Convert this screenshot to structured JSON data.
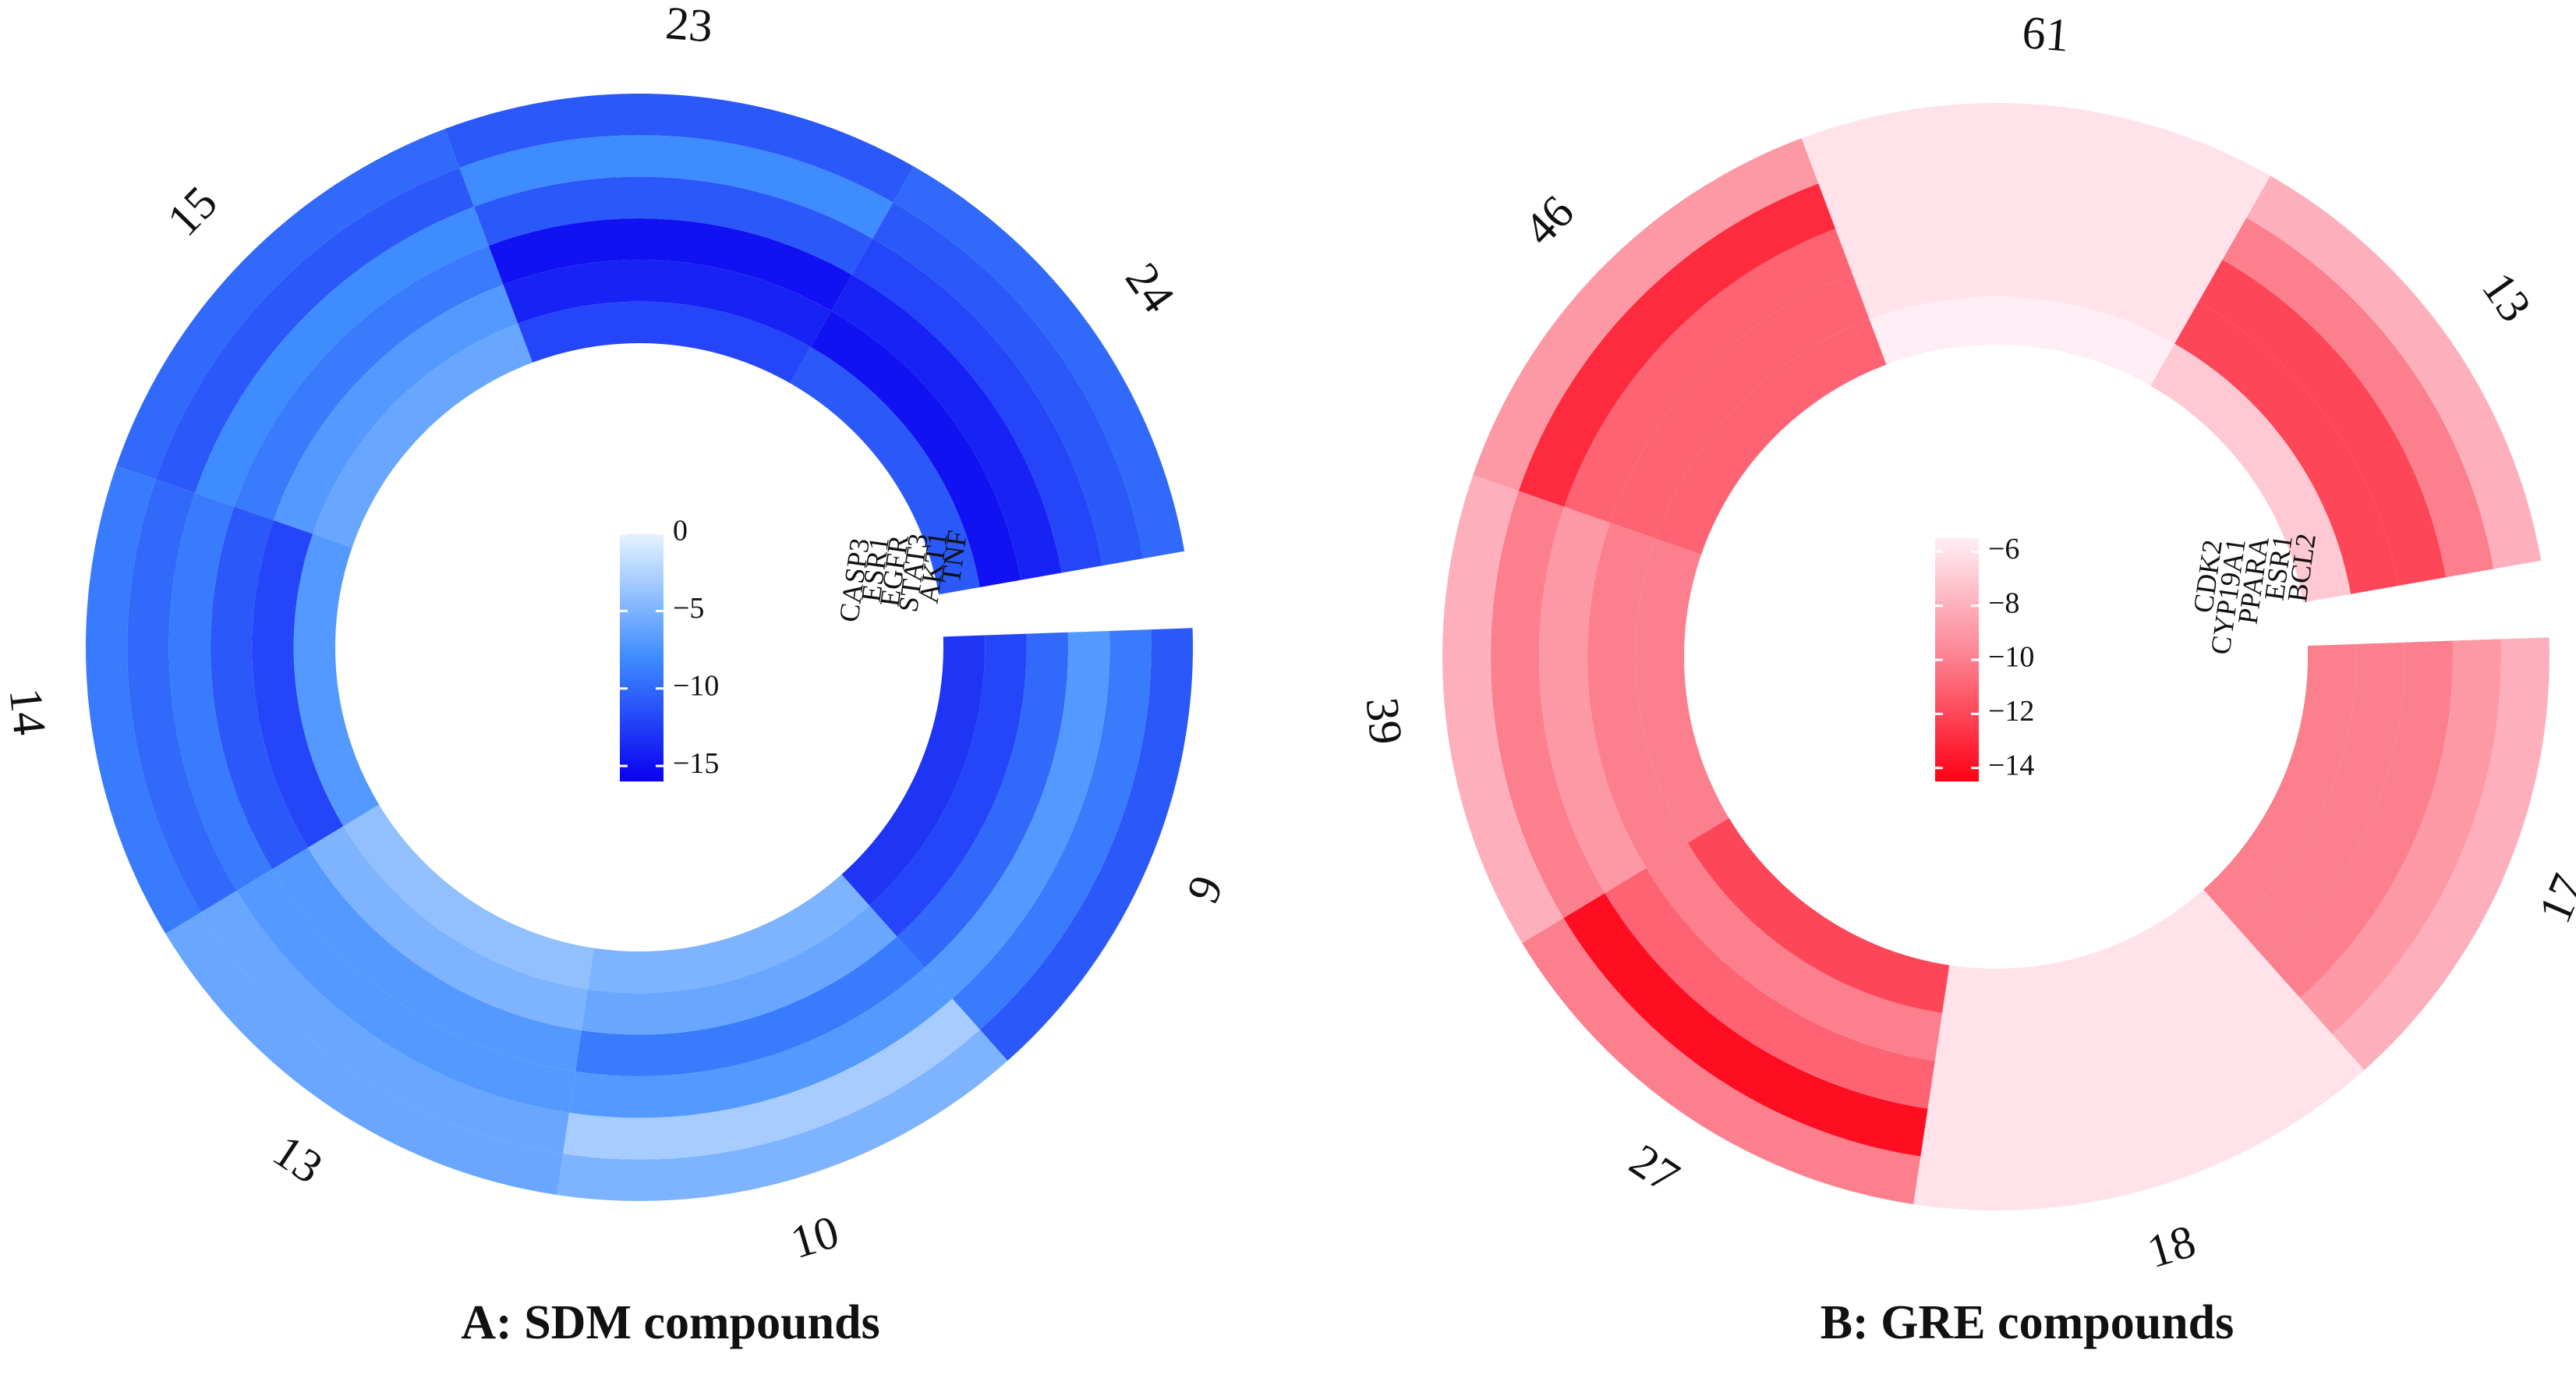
{
  "figure": {
    "panels": [
      {
        "caption": "A: SDM compounds"
      },
      {
        "caption": "B: GRE compounds"
      }
    ]
  },
  "chart_data": [
    {
      "type": "heatmap",
      "layout": "circular",
      "title": "A: SDM compounds",
      "tracks": [
        "TNF",
        "AKT1",
        "STAT3",
        "EGFR",
        "ESR1",
        "CASP3"
      ],
      "sectors": [
        "24",
        "23",
        "15",
        "14",
        "13",
        "10",
        "9"
      ],
      "values": [
        [
          -10,
          -11,
          -12,
          -14,
          -15,
          -11
        ],
        [
          -11,
          -8,
          -11,
          -15,
          -14,
          -12
        ],
        [
          -10,
          -11,
          -8,
          -9,
          -7,
          -6
        ],
        [
          -9,
          -10,
          -9,
          -11,
          -12,
          -7
        ],
        [
          -6,
          -6,
          -7,
          -7,
          -5,
          -4
        ],
        [
          -5,
          -3,
          -7,
          -9,
          -6,
          -5
        ],
        [
          -11,
          -9,
          -7,
          -10,
          -12,
          -13
        ]
      ],
      "color_scale": {
        "min": -16,
        "max": 0,
        "low_color": "#0a00f0",
        "mid_color": "#3e8cff",
        "high_color": "#e6f3ff"
      },
      "colorbar_ticks": [
        "0",
        "−5",
        "−10",
        "−15"
      ],
      "colorbar_tick_values": [
        0,
        -5,
        -10,
        -15
      ]
    },
    {
      "type": "heatmap",
      "layout": "circular",
      "title": "B: GRE compounds",
      "tracks": [
        "BCL2",
        "ESR1",
        "PPARA",
        "CYP19A1",
        "CDK2"
      ],
      "sectors": [
        "13",
        "61",
        "46",
        "39",
        "27",
        "18",
        "17"
      ],
      "values": [
        [
          -8,
          -10,
          -12,
          -12,
          -7
        ],
        [
          -6,
          -6,
          -6,
          -6,
          -5
        ],
        [
          -9,
          -13,
          -11,
          -11,
          -11
        ],
        [
          -8,
          -10,
          -9,
          -10,
          -10
        ],
        [
          -10,
          -14,
          -11,
          -10,
          -12
        ],
        [
          -6,
          -6,
          -6,
          -6,
          -6
        ],
        [
          -8,
          -9,
          -10,
          -10,
          -10
        ]
      ],
      "color_scale": {
        "min": -14.5,
        "max": -5.5,
        "low_color": "#ff0015",
        "mid_color": "#fc7f8e",
        "high_color": "#ffeef6"
      },
      "colorbar_ticks": [
        "−6",
        "−8",
        "−10",
        "−12",
        "−14"
      ],
      "colorbar_tick_values": [
        -6,
        -8,
        -10,
        -12,
        -14
      ]
    }
  ]
}
